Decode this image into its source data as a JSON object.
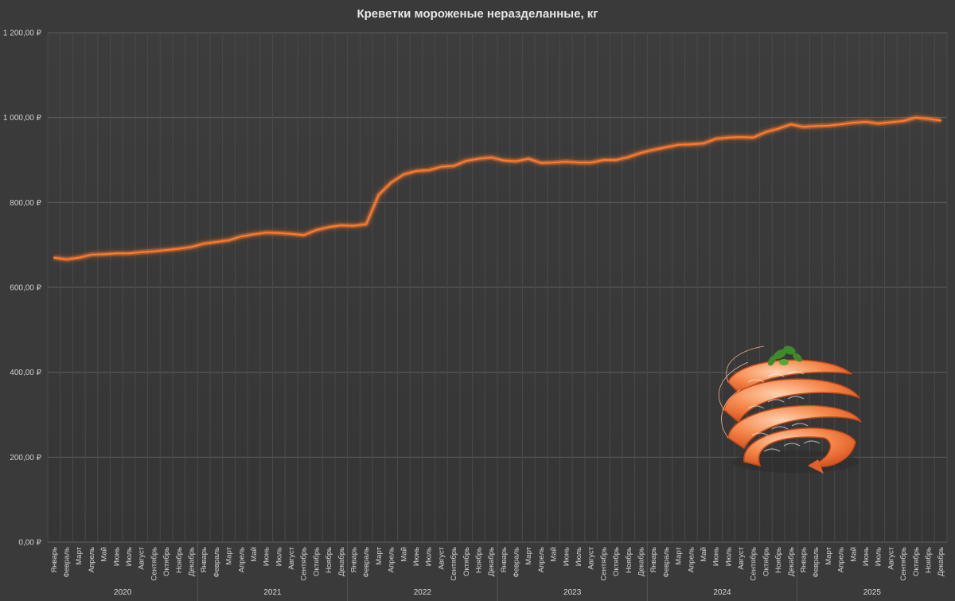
{
  "chart_data": {
    "type": "line",
    "title": "Креветки мороженые неразделанные, кг",
    "xlabel": "",
    "ylabel": "",
    "ylim": [
      0,
      1200
    ],
    "y_ticks": [
      "0,00 ₽",
      "200,00 ₽",
      "400,00 ₽",
      "600,00 ₽",
      "800,00 ₽",
      "1 000,00 ₽",
      "1 200,00 ₽"
    ],
    "y_tick_values": [
      0,
      200,
      400,
      600,
      800,
      1000,
      1200
    ],
    "grid": true,
    "line_color": "#ff7a2e",
    "years": [
      "2020",
      "2021",
      "2022",
      "2023",
      "2024",
      "2025"
    ],
    "months": [
      "Январь",
      "Февраль",
      "Март",
      "Апрель",
      "Май",
      "Июнь",
      "Июль",
      "Август",
      "Сентябрь",
      "Октябрь",
      "Ноябрь",
      "Декабрь"
    ],
    "series": [
      {
        "values": [
          670,
          666,
          670,
          677,
          678,
          680,
          680,
          683,
          685,
          688,
          691,
          695,
          703,
          707,
          711,
          720,
          725,
          729,
          728,
          726,
          723,
          735,
          742,
          746,
          745,
          749,
          818,
          847,
          866,
          874,
          876,
          884,
          886,
          898,
          903,
          906,
          899,
          897,
          903,
          893,
          894,
          896,
          894,
          894,
          900,
          900,
          907,
          917,
          924,
          930,
          936,
          937,
          939,
          950,
          953,
          954,
          953,
          966,
          974,
          984,
          978,
          980,
          981,
          984,
          988,
          990,
          986,
          989,
          992,
          1000,
          997,
          993
        ]
      }
    ]
  },
  "decoration": {
    "image": "shrimp-illustration"
  }
}
